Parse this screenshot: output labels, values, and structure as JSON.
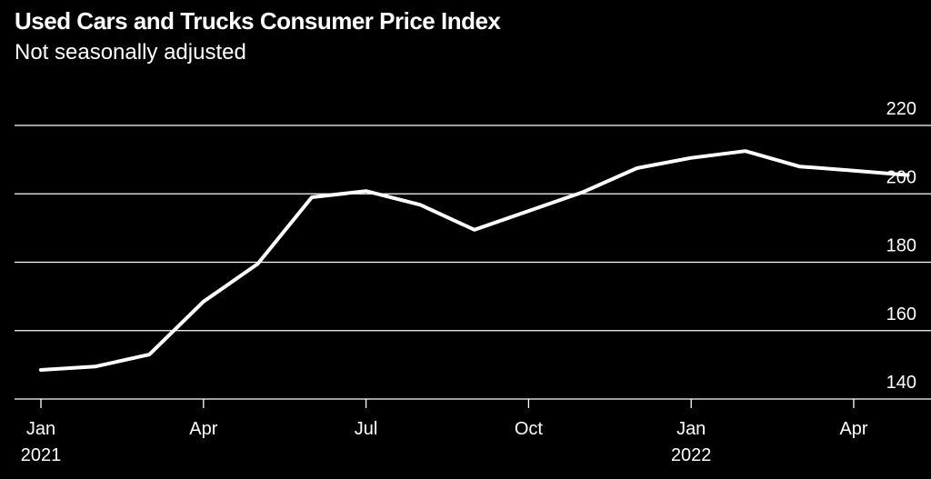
{
  "title": "Used Cars and Trucks Consumer Price Index",
  "subtitle": "Not seasonally adjusted",
  "colors": {
    "background": "#000000",
    "line": "#ffffff",
    "grid": "#ffffff",
    "text": "#ffffff"
  },
  "chart_data": {
    "type": "line",
    "title": "Used Cars and Trucks Consumer Price Index",
    "subtitle": "Not seasonally adjusted",
    "xlabel": "",
    "ylabel": "",
    "x": [
      "2021-01",
      "2021-02",
      "2021-03",
      "2021-04",
      "2021-05",
      "2021-06",
      "2021-07",
      "2021-08",
      "2021-09",
      "2021-10",
      "2021-11",
      "2021-12",
      "2022-01",
      "2022-02",
      "2022-03",
      "2022-04",
      "2022-05"
    ],
    "series": [
      {
        "values": [
          148.5,
          149.5,
          153.0,
          168.5,
          179.5,
          199.0,
          200.8,
          196.8,
          189.5,
          195.0,
          200.5,
          207.5,
          210.5,
          212.5,
          208.0,
          206.8,
          205.5
        ]
      }
    ],
    "ylim": [
      140,
      220
    ],
    "yticks": [
      "140",
      "160",
      "180",
      "200",
      "220"
    ],
    "ytick_values": [
      140,
      160,
      180,
      200,
      220
    ],
    "xticks": [
      {
        "x": "2021-01",
        "label": "Jan",
        "sublabel": "2021"
      },
      {
        "x": "2021-04",
        "label": "Apr",
        "sublabel": ""
      },
      {
        "x": "2021-07",
        "label": "Jul",
        "sublabel": ""
      },
      {
        "x": "2021-10",
        "label": "Oct",
        "sublabel": ""
      },
      {
        "x": "2022-01",
        "label": "Jan",
        "sublabel": "2022"
      },
      {
        "x": "2022-04",
        "label": "Apr",
        "sublabel": ""
      }
    ],
    "grid": true,
    "y_axis_side": "right",
    "legend": "none"
  }
}
